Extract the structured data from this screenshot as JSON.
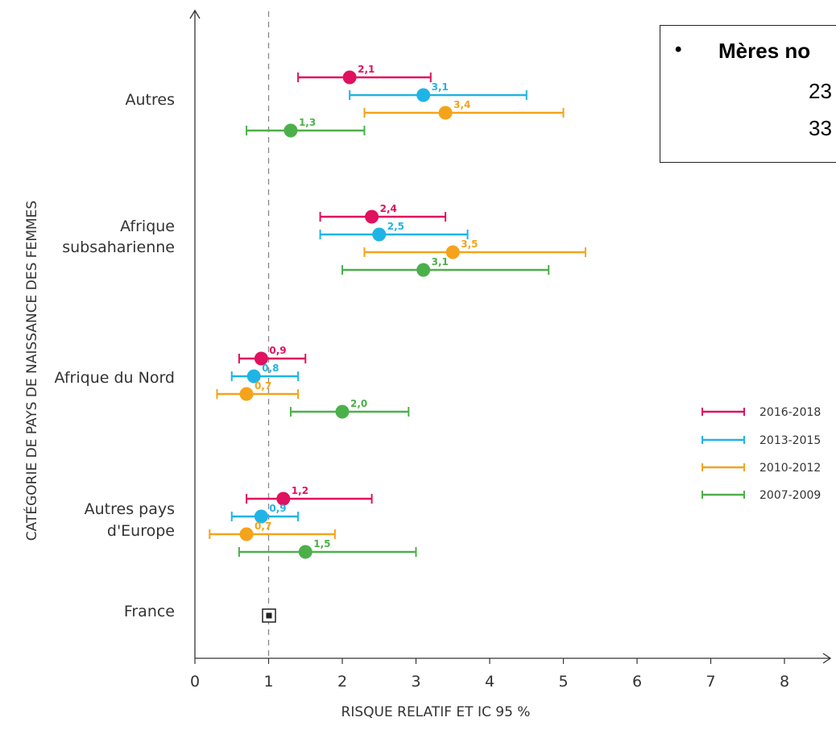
{
  "chart_data": {
    "type": "forest-plot",
    "xlabel": "RISQUE RELATIF ET IC 95 %",
    "ylabel": "CATÉGORIE DE PAYS DE NAISSANCE DES FEMMES",
    "xlim": [
      0,
      9
    ],
    "xticks": [
      "0",
      "1",
      "2",
      "3",
      "4",
      "5",
      "6",
      "7",
      "8"
    ],
    "reference_line": 1,
    "categories": [
      "Autres",
      "Afrique subsaharienne",
      "Afrique du Nord",
      "Autres pays d'Europe",
      "France"
    ],
    "category_labels": [
      [
        "Autres"
      ],
      [
        "Afrique",
        "subsaharienne"
      ],
      [
        "Afrique du Nord"
      ],
      [
        "Autres pays",
        "d'Europe"
      ],
      [
        "France"
      ]
    ],
    "reference_category": "France",
    "series": [
      {
        "name": "2016-2018",
        "color": "#e0115f",
        "points": [
          {
            "category": "Autres",
            "rr": 2.1,
            "lo": 1.4,
            "hi": 3.2,
            "label": "2,1"
          },
          {
            "category": "Afrique subsaharienne",
            "rr": 2.4,
            "lo": 1.7,
            "hi": 3.4,
            "label": "2,4"
          },
          {
            "category": "Afrique du Nord",
            "rr": 0.9,
            "lo": 0.6,
            "hi": 1.5,
            "label": "0,9"
          },
          {
            "category": "Autres pays d'Europe",
            "rr": 1.2,
            "lo": 0.7,
            "hi": 2.4,
            "label": "1,2"
          }
        ]
      },
      {
        "name": "2013-2015",
        "color": "#1fb4e6",
        "points": [
          {
            "category": "Autres",
            "rr": 3.1,
            "lo": 2.1,
            "hi": 4.5,
            "label": "3,1"
          },
          {
            "category": "Afrique subsaharienne",
            "rr": 2.5,
            "lo": 1.7,
            "hi": 3.7,
            "label": "2,5"
          },
          {
            "category": "Afrique du Nord",
            "rr": 0.8,
            "lo": 0.5,
            "hi": 1.4,
            "label": "0,8"
          },
          {
            "category": "Autres pays d'Europe",
            "rr": 0.9,
            "lo": 0.5,
            "hi": 1.4,
            "label": "0,9"
          }
        ]
      },
      {
        "name": "2010-2012",
        "color": "#f5a31a",
        "points": [
          {
            "category": "Autres",
            "rr": 3.4,
            "lo": 2.3,
            "hi": 5.0,
            "label": "3,4"
          },
          {
            "category": "Afrique subsaharienne",
            "rr": 3.5,
            "lo": 2.3,
            "hi": 5.3,
            "label": "3,5"
          },
          {
            "category": "Afrique du Nord",
            "rr": 0.7,
            "lo": 0.3,
            "hi": 1.4,
            "label": "0,7"
          },
          {
            "category": "Autres pays d'Europe",
            "rr": 0.7,
            "lo": 0.2,
            "hi": 1.9,
            "label": "0,7"
          }
        ]
      },
      {
        "name": "2007-2009",
        "color": "#4cb04a",
        "points": [
          {
            "category": "Autres",
            "rr": 1.3,
            "lo": 0.7,
            "hi": 2.3,
            "label": "1,3"
          },
          {
            "category": "Afrique subsaharienne",
            "rr": 3.1,
            "lo": 2.0,
            "hi": 4.8,
            "label": "3,1"
          },
          {
            "category": "Afrique du Nord",
            "rr": 2.0,
            "lo": 1.3,
            "hi": 2.9,
            "label": "2,0"
          },
          {
            "category": "Autres pays d'Europe",
            "rr": 1.5,
            "lo": 0.6,
            "hi": 3.0,
            "label": "1,5"
          }
        ]
      }
    ],
    "legend": [
      "2016-2018",
      "2013-2015",
      "2010-2012",
      "2007-2009"
    ],
    "legend_position": "right"
  },
  "note": {
    "bullet": "•",
    "title": "Mères no",
    "line1": "23",
    "line2": "33"
  }
}
